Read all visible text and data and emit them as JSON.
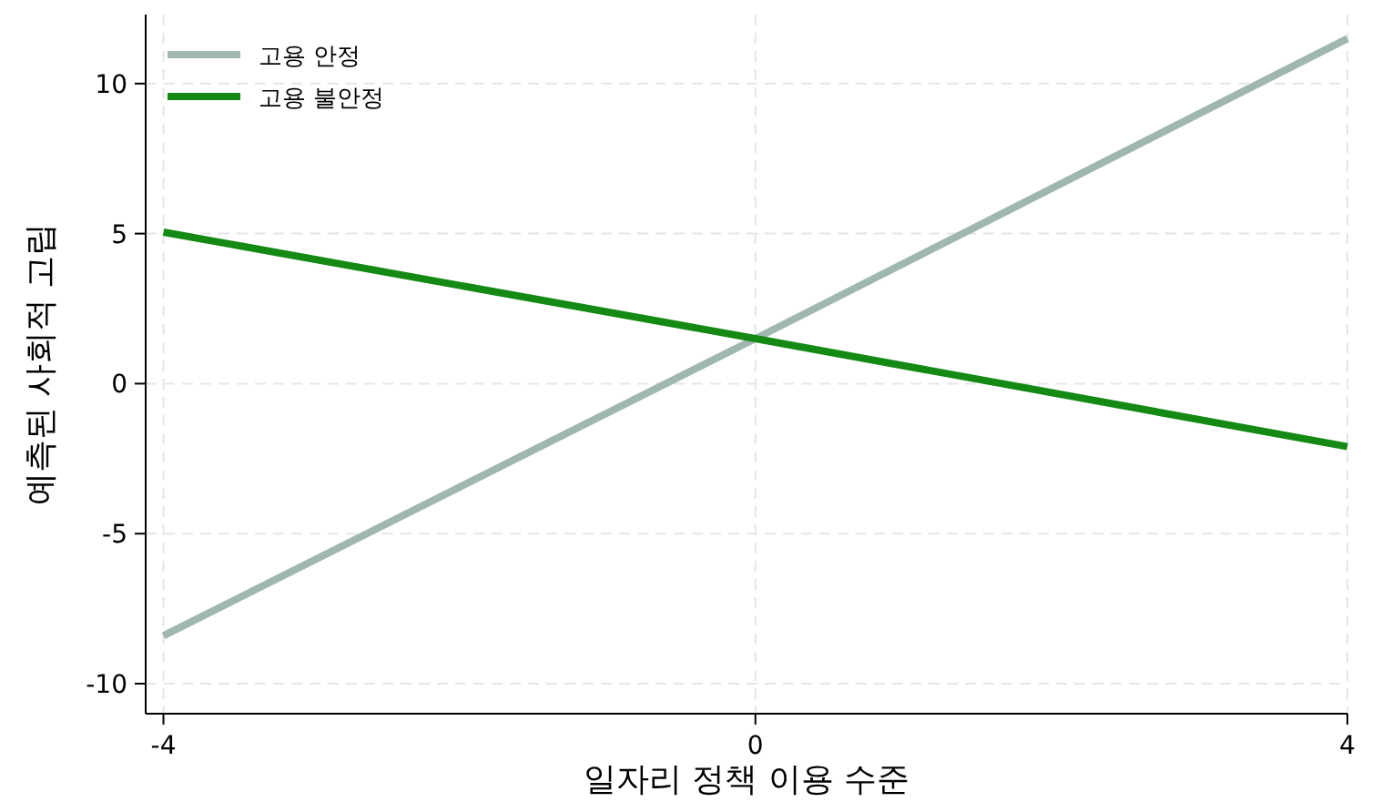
{
  "chart_data": {
    "type": "line",
    "xlabel": "일자리 정책 이용 수준",
    "ylabel": "예측된 사회적 고립",
    "x": [
      -4,
      0,
      4
    ],
    "series": [
      {
        "name": "고용 안정",
        "color": "#9fb7b0",
        "values": [
          -8.4,
          1.5,
          11.5
        ]
      },
      {
        "name": "고용 불안정",
        "color": "#148a14",
        "values": [
          5.05,
          1.5,
          -2.1
        ]
      }
    ],
    "xlim": [
      -4.12,
      4
    ],
    "ylim": [
      -11,
      12.3
    ],
    "xticks": [
      -4,
      0,
      4
    ],
    "yticks": [
      -10,
      -5,
      0,
      5,
      10
    ],
    "grid": true,
    "legend": "top left",
    "line_style": "solid",
    "marker": "none"
  }
}
